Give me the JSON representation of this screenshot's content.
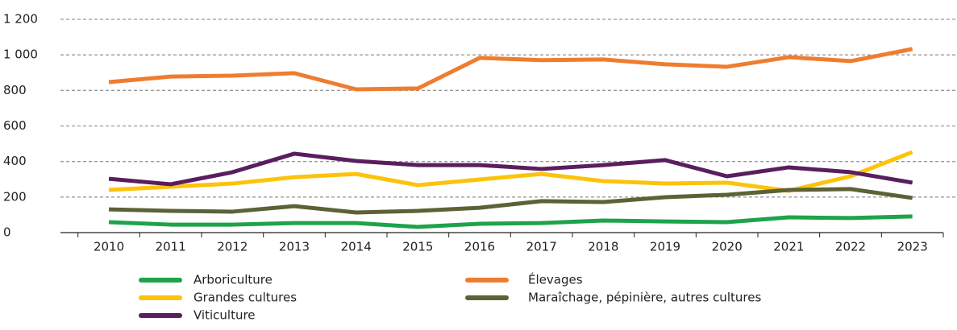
{
  "chart_data": {
    "type": "line",
    "categories": [
      "2010",
      "2011",
      "2012",
      "2013",
      "2014",
      "2015",
      "2016",
      "2017",
      "2018",
      "2019",
      "2020",
      "2021",
      "2022",
      "2023"
    ],
    "series": [
      {
        "name": "Arboriculture",
        "color": "#1fa34a",
        "values": [
          59,
          45,
          45,
          54,
          54,
          32,
          50,
          54,
          68,
          63,
          59,
          86,
          82,
          91
        ]
      },
      {
        "name": "Élevages",
        "color": "#ee7d31",
        "values": [
          847,
          878,
          883,
          897,
          806,
          811,
          983,
          970,
          974,
          947,
          933,
          987,
          965,
          1033
        ]
      },
      {
        "name": "Grandes cultures",
        "color": "#fcc30b",
        "values": [
          240,
          258,
          276,
          312,
          330,
          267,
          299,
          330,
          290,
          276,
          281,
          235,
          317,
          453
        ]
      },
      {
        "name": "Maraîchage, pépinière, autres cultures",
        "color": "#5d6236",
        "values": [
          131,
          122,
          118,
          149,
          113,
          122,
          140,
          177,
          172,
          199,
          213,
          240,
          245,
          195
        ]
      },
      {
        "name": "Viticulture",
        "color": "#5a1e5e",
        "values": [
          303,
          272,
          340,
          444,
          403,
          380,
          380,
          358,
          380,
          408,
          317,
          367,
          340,
          281
        ]
      }
    ],
    "ylim": [
      0,
      1200
    ],
    "yticks": [
      0,
      200,
      400,
      600,
      800,
      {
        "value": 1000,
        "label": "1 000"
      },
      {
        "value": 1200,
        "label": "1 200"
      }
    ],
    "grid": true
  }
}
